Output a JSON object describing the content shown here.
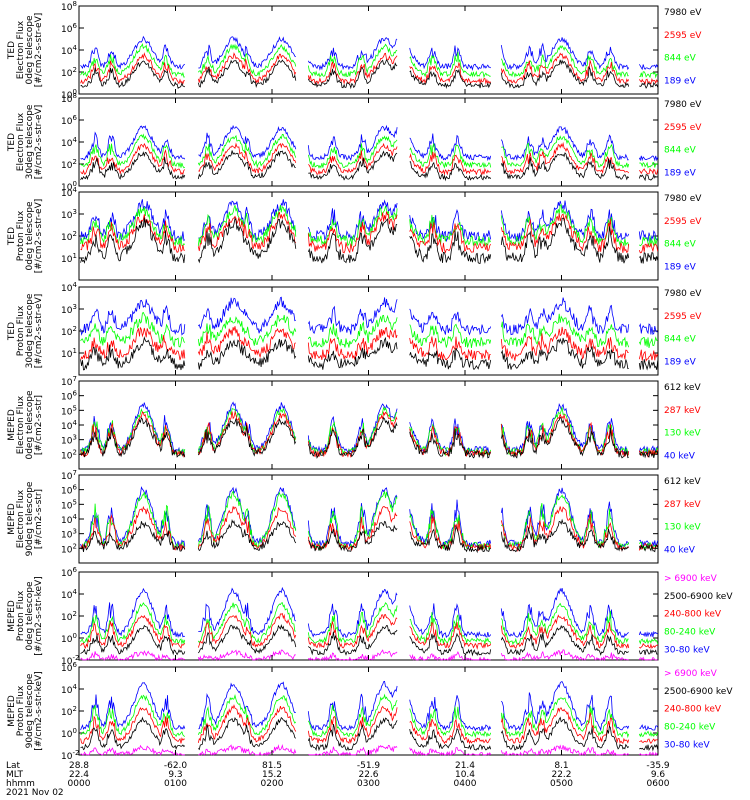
{
  "colors": {
    "black": "#000000",
    "red": "#ff0000",
    "green": "#00ff00",
    "blue": "#0000ff",
    "magenta": "#ff00ff"
  },
  "chart_data": [
    {
      "type": "line",
      "ylabel": [
        "TED",
        "Electron Flux",
        "0deg telescope",
        "[#/cm2-s-str-eV]"
      ],
      "ylim": [
        1,
        100000000
      ],
      "yscale": "log",
      "yticks": [
        {
          "v": 1,
          "e": "0"
        },
        {
          "v": 100,
          "e": "2"
        },
        {
          "v": 10000,
          "e": "4"
        },
        {
          "v": 1000000,
          "e": "6"
        },
        {
          "v": 100000000,
          "e": "8"
        }
      ],
      "legend": [
        {
          "text": "7980 eV",
          "color": "#000000"
        },
        {
          "text": "2595 eV",
          "color": "#ff0000"
        },
        {
          "text": "844 eV",
          "color": "#00ff00"
        },
        {
          "text": "189 eV",
          "color": "#0000ff"
        }
      ],
      "series": [
        {
          "color": "#0000ff",
          "base": 300,
          "peak": 100000
        },
        {
          "color": "#00ff00",
          "base": 60,
          "peak": 20000
        },
        {
          "color": "#ff0000",
          "base": 15,
          "peak": 3000
        },
        {
          "color": "#000000",
          "base": 6,
          "peak": 800
        }
      ]
    },
    {
      "type": "line",
      "ylabel": [
        "TED",
        "Electron Flux",
        "30deg telescope",
        "[#/cm2-s-str-eV]"
      ],
      "ylim": [
        1,
        100000000
      ],
      "yscale": "log",
      "yticks": [
        {
          "v": 1,
          "e": "0"
        },
        {
          "v": 100,
          "e": "2"
        },
        {
          "v": 10000,
          "e": "4"
        },
        {
          "v": 1000000,
          "e": "6"
        },
        {
          "v": 100000000,
          "e": "8"
        }
      ],
      "legend": [
        {
          "text": "7980 eV",
          "color": "#000000"
        },
        {
          "text": "2595 eV",
          "color": "#ff0000"
        },
        {
          "text": "844 eV",
          "color": "#00ff00"
        },
        {
          "text": "189 eV",
          "color": "#0000ff"
        }
      ],
      "series": [
        {
          "color": "#0000ff",
          "base": 400,
          "peak": 200000
        },
        {
          "color": "#00ff00",
          "base": 80,
          "peak": 30000
        },
        {
          "color": "#ff0000",
          "base": 20,
          "peak": 5000
        },
        {
          "color": "#000000",
          "base": 6,
          "peak": 1000
        }
      ]
    },
    {
      "type": "line",
      "ylabel": [
        "TED",
        "Proton Flux",
        "0deg telescope",
        "[#/cm2-s-str-eV]"
      ],
      "ylim": [
        1,
        10000
      ],
      "yscale": "log",
      "yticks": [
        {
          "v": 10,
          "e": "1"
        },
        {
          "v": 100,
          "e": "2"
        },
        {
          "v": 1000,
          "e": "3"
        },
        {
          "v": 10000,
          "e": "4"
        }
      ],
      "legend": [
        {
          "text": "7980 eV",
          "color": "#000000"
        },
        {
          "text": "2595 eV",
          "color": "#ff0000"
        },
        {
          "text": "844 eV",
          "color": "#00ff00"
        },
        {
          "text": "189 eV",
          "color": "#0000ff"
        }
      ],
      "series": [
        {
          "color": "#0000ff",
          "base": 100,
          "peak": 3000
        },
        {
          "color": "#00ff00",
          "base": 60,
          "peak": 1500
        },
        {
          "color": "#ff0000",
          "base": 30,
          "peak": 800
        },
        {
          "color": "#000000",
          "base": 10,
          "peak": 400
        }
      ]
    },
    {
      "type": "line",
      "ylabel": [
        "TED",
        "Proton Flux",
        "30deg telescope",
        "[#/cm2-s-str-eV]"
      ],
      "ylim": [
        1,
        10000
      ],
      "yscale": "log",
      "yticks": [
        {
          "v": 10,
          "e": "1"
        },
        {
          "v": 100,
          "e": "2"
        },
        {
          "v": 1000,
          "e": "3"
        },
        {
          "v": 10000,
          "e": "4"
        }
      ],
      "legend": [
        {
          "text": "7980 eV",
          "color": "#000000"
        },
        {
          "text": "2595 eV",
          "color": "#ff0000"
        },
        {
          "text": "844 eV",
          "color": "#00ff00"
        },
        {
          "text": "189 eV",
          "color": "#0000ff"
        }
      ],
      "series": [
        {
          "color": "#0000ff",
          "base": 120,
          "peak": 2000
        },
        {
          "color": "#00ff00",
          "base": 30,
          "peak": 400
        },
        {
          "color": "#ff0000",
          "base": 8,
          "peak": 100
        },
        {
          "color": "#000000",
          "base": 3,
          "peak": 30
        }
      ]
    },
    {
      "type": "line",
      "ylabel": [
        "MEPED",
        "Electron Flux",
        "0deg telescope",
        "[#/cm2-s-str]"
      ],
      "ylim": [
        10,
        10000000
      ],
      "yscale": "log",
      "yticks": [
        {
          "v": 100,
          "e": "2"
        },
        {
          "v": 1000,
          "e": "3"
        },
        {
          "v": 10000,
          "e": "4"
        },
        {
          "v": 100000,
          "e": "5"
        },
        {
          "v": 1000000,
          "e": "6"
        },
        {
          "v": 10000000,
          "e": "7"
        }
      ],
      "legend": [
        {
          "text": "612 keV",
          "color": "#000000"
        },
        {
          "text": "287 keV",
          "color": "#ff0000"
        },
        {
          "text": "130 keV",
          "color": "#00ff00"
        },
        {
          "text": "40 keV",
          "color": "#0000ff"
        }
      ],
      "series": [
        {
          "color": "#0000ff",
          "base": 200,
          "peak": 200000
        },
        {
          "color": "#00ff00",
          "base": 150,
          "peak": 100000
        },
        {
          "color": "#ff0000",
          "base": 120,
          "peak": 50000
        },
        {
          "color": "#000000",
          "base": 100,
          "peak": 20000
        }
      ]
    },
    {
      "type": "line",
      "ylabel": [
        "MEPED",
        "Electron Flux",
        "90deg telescope",
        "[#/cm2-s-str]"
      ],
      "ylim": [
        10,
        10000000
      ],
      "yscale": "log",
      "yticks": [
        {
          "v": 100,
          "e": "2"
        },
        {
          "v": 1000,
          "e": "3"
        },
        {
          "v": 10000,
          "e": "4"
        },
        {
          "v": 100000,
          "e": "5"
        },
        {
          "v": 1000000,
          "e": "6"
        },
        {
          "v": 10000000,
          "e": "7"
        }
      ],
      "legend": [
        {
          "text": "612 keV",
          "color": "#000000"
        },
        {
          "text": "287 keV",
          "color": "#ff0000"
        },
        {
          "text": "130 keV",
          "color": "#00ff00"
        },
        {
          "text": "40 keV",
          "color": "#0000ff"
        }
      ],
      "series": [
        {
          "color": "#0000ff",
          "base": 200,
          "peak": 1000000
        },
        {
          "color": "#00ff00",
          "base": 150,
          "peak": 500000
        },
        {
          "color": "#ff0000",
          "base": 120,
          "peak": 50000
        },
        {
          "color": "#000000",
          "base": 100,
          "peak": 5000
        }
      ]
    },
    {
      "type": "line",
      "ylabel": [
        "MEPED",
        "Proton Flux",
        "0deg telescope",
        "[#/cm2-s-str-keV]"
      ],
      "ylim": [
        0.01,
        1000000
      ],
      "yscale": "log",
      "yticks": [
        {
          "v": 0.01,
          "e": "-2"
        },
        {
          "v": 1,
          "e": "0"
        },
        {
          "v": 100,
          "e": "2"
        },
        {
          "v": 10000,
          "e": "4"
        },
        {
          "v": 1000000,
          "e": "6"
        }
      ],
      "legend": [
        {
          "text": "> 6900 keV",
          "color": "#ff00ff"
        },
        {
          "text": "2500-6900 keV",
          "color": "#000000"
        },
        {
          "text": "240-800 keV",
          "color": "#ff0000"
        },
        {
          "text": "80-240 keV",
          "color": "#00ff00"
        },
        {
          "text": "30-80 keV",
          "color": "#0000ff"
        }
      ],
      "series": [
        {
          "color": "#0000ff",
          "base": 2,
          "peak": 20000
        },
        {
          "color": "#00ff00",
          "base": 0.5,
          "peak": 1000
        },
        {
          "color": "#ff0000",
          "base": 0.2,
          "peak": 100
        },
        {
          "color": "#000000",
          "base": 0.05,
          "peak": 10
        },
        {
          "color": "#ff00ff",
          "base": 0.01,
          "peak": 0.05
        }
      ]
    },
    {
      "type": "line",
      "ylabel": [
        "MEPED",
        "Proton Flux",
        "90deg telescope",
        "[#/cm2-s-str-keV]"
      ],
      "ylim": [
        0.01,
        1000000
      ],
      "yscale": "log",
      "yticks": [
        {
          "v": 0.01,
          "e": "-2"
        },
        {
          "v": 1,
          "e": "0"
        },
        {
          "v": 100,
          "e": "2"
        },
        {
          "v": 10000,
          "e": "4"
        },
        {
          "v": 1000000,
          "e": "6"
        }
      ],
      "legend": [
        {
          "text": "> 6900 keV",
          "color": "#ff00ff"
        },
        {
          "text": "2500-6900 keV",
          "color": "#000000"
        },
        {
          "text": "240-800 keV",
          "color": "#ff0000"
        },
        {
          "text": "80-240 keV",
          "color": "#00ff00"
        },
        {
          "text": "30-80 keV",
          "color": "#0000ff"
        }
      ],
      "series": [
        {
          "color": "#0000ff",
          "base": 3,
          "peak": 30000
        },
        {
          "color": "#00ff00",
          "base": 0.8,
          "peak": 2000
        },
        {
          "color": "#ff0000",
          "base": 0.2,
          "peak": 200
        },
        {
          "color": "#000000",
          "base": 0.05,
          "peak": 15
        },
        {
          "color": "#ff00ff",
          "base": 0.01,
          "peak": 0.05
        }
      ]
    }
  ],
  "xaxis": {
    "row_labels": [
      "Lat",
      "MLT",
      "hhmm"
    ],
    "ticks": [
      {
        "t": 0,
        "lat": "28.8",
        "mlt": "22.4",
        "hhmm": "0000"
      },
      {
        "t": 60,
        "lat": "-62.0",
        "mlt": "9.3",
        "hhmm": "0100"
      },
      {
        "t": 120,
        "lat": "81.5",
        "mlt": "15.2",
        "hhmm": "0200"
      },
      {
        "t": 180,
        "lat": "-51.9",
        "mlt": "22.6",
        "hhmm": "0300"
      },
      {
        "t": 240,
        "lat": "21.4",
        "mlt": "10.4",
        "hhmm": "0400"
      },
      {
        "t": 300,
        "lat": "8.1",
        "mlt": "22.2",
        "hhmm": "0500"
      },
      {
        "t": 360,
        "lat": "-35.9",
        "mlt": "9.6",
        "hhmm": "0600"
      }
    ],
    "date": "2021 Nov 02",
    "tmax": 360
  }
}
